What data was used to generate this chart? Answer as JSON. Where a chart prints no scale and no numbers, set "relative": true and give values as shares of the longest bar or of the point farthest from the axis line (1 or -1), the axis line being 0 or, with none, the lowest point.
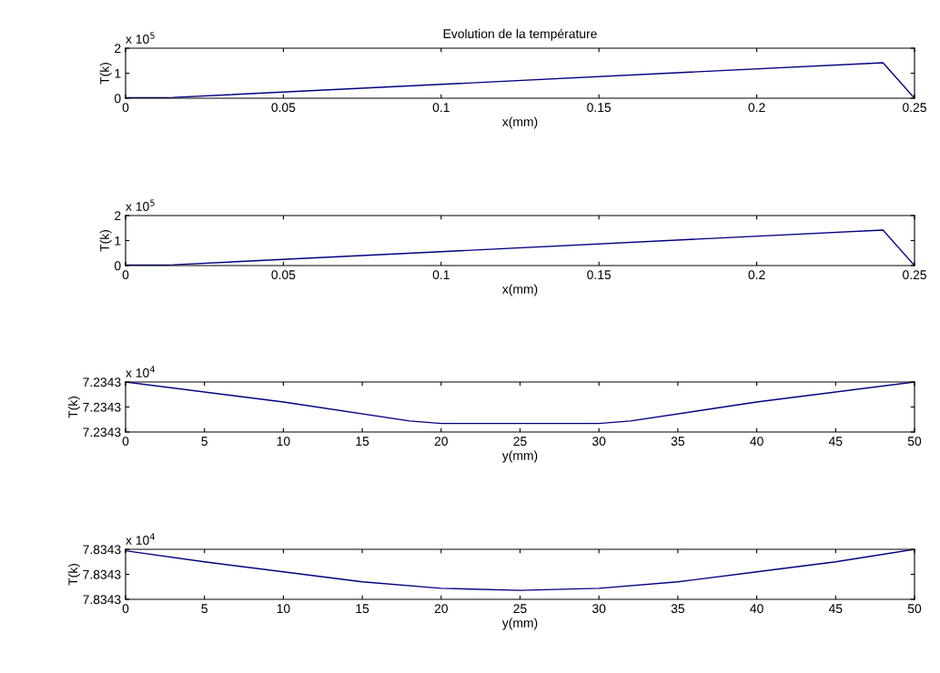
{
  "chart_data": [
    {
      "type": "line",
      "title": "Evolution de la température",
      "xlabel": "x(mm)",
      "ylabel": "T(k)",
      "annotations": [
        "x 10$^{5}$"
      ],
      "legend": false,
      "xlim": [
        0,
        0.25
      ],
      "xticks": [
        0,
        0.05,
        0.1,
        0.15,
        0.2,
        0.25
      ],
      "ylim": [
        0,
        2
      ],
      "yticks": [
        0,
        1,
        2
      ],
      "series": [
        {
          "color": "#000080",
          "x": [
            0,
            0.01,
            0.015,
            0.24,
            0.25
          ],
          "values": [
            0.02,
            0.02,
            0.03,
            1.42,
            0
          ]
        }
      ]
    },
    {
      "type": "line",
      "xlabel": "x(mm)",
      "ylabel": "T(k)",
      "annotations": [
        "x 10$^{5}$"
      ],
      "legend": false,
      "xlim": [
        0,
        0.25
      ],
      "xticks": [
        0,
        0.05,
        0.1,
        0.15,
        0.2,
        0.25
      ],
      "ylim": [
        0,
        2
      ],
      "yticks": [
        0,
        1,
        2
      ],
      "series": [
        {
          "color": "#000080",
          "x": [
            0,
            0.01,
            0.015,
            0.24,
            0.25
          ],
          "values": [
            0.02,
            0.02,
            0.03,
            1.42,
            0
          ]
        }
      ]
    },
    {
      "type": "line",
      "relative": true,
      "xlabel": "y(mm)",
      "ylabel": "T(k)",
      "annotations": [
        "x 10$^{4}$",
        "7.2343",
        "7.2343",
        "7.2343"
      ],
      "legend": false,
      "xlim": [
        0,
        50
      ],
      "xticks": [
        0,
        5,
        10,
        15,
        20,
        25,
        30,
        35,
        40,
        45,
        50
      ],
      "series": [
        {
          "color": "#000080",
          "x": [
            0,
            10,
            18,
            20,
            30,
            32,
            40,
            50
          ],
          "values": [
            1,
            0.6,
            0.22,
            0.17,
            0.17,
            0.22,
            0.6,
            1
          ]
        }
      ]
    },
    {
      "type": "line",
      "relative": true,
      "xlabel": "y(mm)",
      "ylabel": "T(k)",
      "annotations": [
        "x 10$^{4}$",
        "7.8343",
        "7.8343",
        "7.8343"
      ],
      "legend": false,
      "xlim": [
        0,
        50
      ],
      "xticks": [
        0,
        5,
        10,
        15,
        20,
        25,
        30,
        35,
        40,
        45,
        50
      ],
      "series": [
        {
          "color": "#000080",
          "x": [
            0,
            5,
            10,
            15,
            20,
            25,
            30,
            35,
            40,
            45,
            50
          ],
          "values": [
            0.97,
            0.75,
            0.55,
            0.35,
            0.22,
            0.18,
            0.22,
            0.35,
            0.55,
            0.75,
            1
          ]
        }
      ]
    }
  ]
}
